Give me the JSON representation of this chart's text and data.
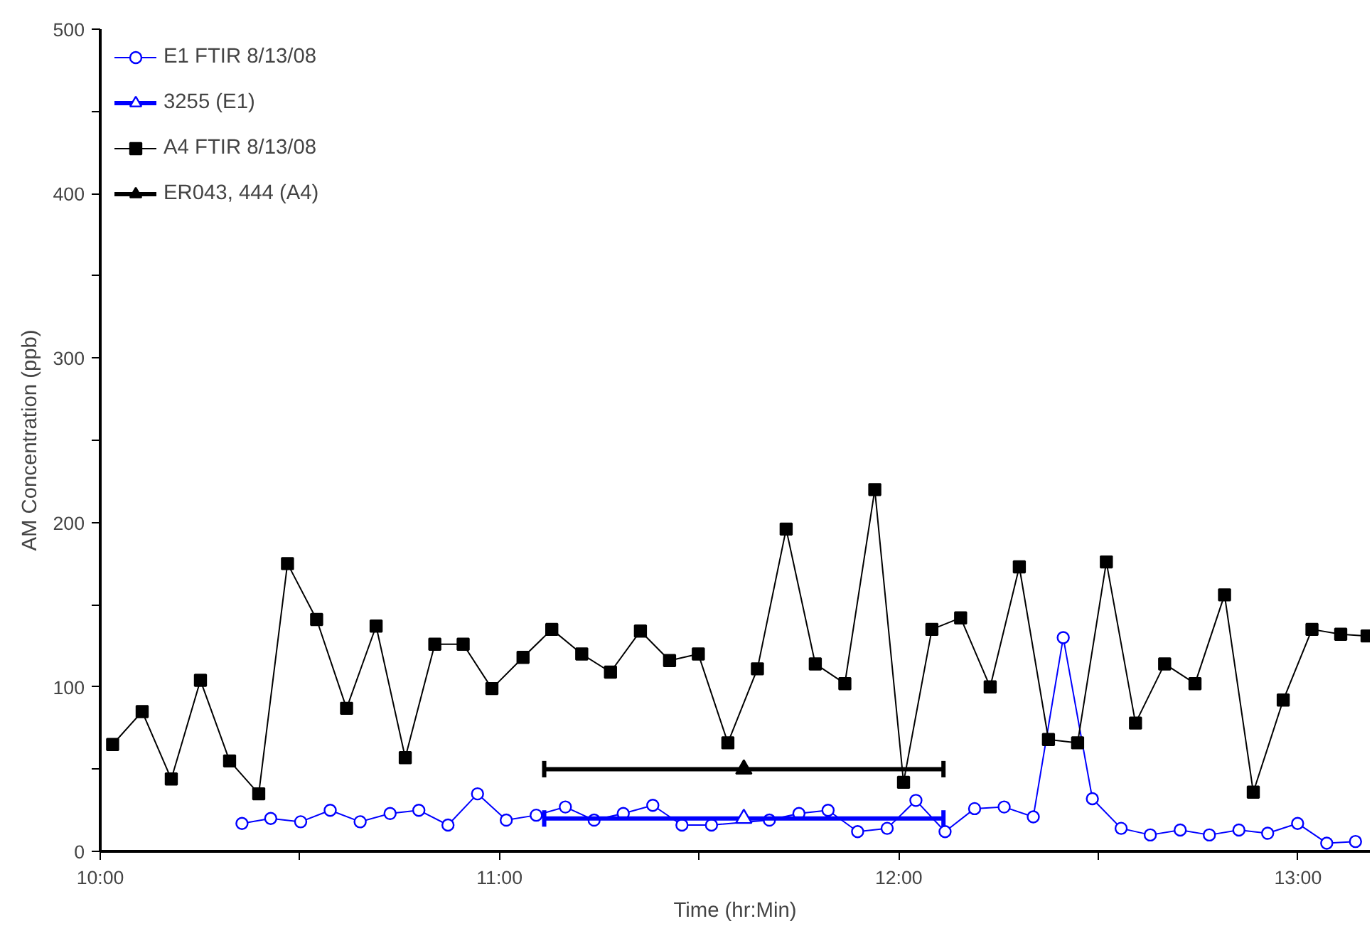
{
  "chart_data": {
    "type": "line",
    "xlabel": "Time (hr:Min)",
    "ylabel": "AM Concentration (ppb)",
    "xlim": [
      10,
      13.18
    ],
    "ylim": [
      0,
      500
    ],
    "xticks": [
      {
        "value": 10,
        "label": "10:00"
      },
      {
        "value": 10.5,
        "label": null
      },
      {
        "value": 11,
        "label": "11:00"
      },
      {
        "value": 11.5,
        "label": null
      },
      {
        "value": 12,
        "label": "12:00"
      },
      {
        "value": 12.5,
        "label": null
      },
      {
        "value": 13,
        "label": "13:00"
      }
    ],
    "yticks": [
      0,
      {
        "value": 50,
        "label": null
      },
      100,
      {
        "value": 150,
        "label": null
      },
      200,
      {
        "value": 250,
        "label": null
      },
      300,
      {
        "value": 350,
        "label": null
      },
      400,
      {
        "value": 450,
        "label": null
      },
      500
    ],
    "grid": false,
    "legend": "top left",
    "series": [
      {
        "name": "E1 FTIR 8/13/08",
        "color": "#0000ff",
        "marker": "circle",
        "x": [
          10.355,
          10.427,
          10.502,
          10.576,
          10.651,
          10.726,
          10.798,
          10.871,
          10.945,
          11.017,
          11.092,
          11.165,
          11.237,
          11.31,
          11.384,
          11.457,
          11.531,
          11.676,
          11.75,
          11.823,
          11.897,
          11.971,
          12.043,
          12.116,
          12.19,
          12.264,
          12.337,
          12.412,
          12.485,
          12.557,
          12.63,
          12.705,
          12.778,
          12.852,
          12.924,
          12.999,
          13.072,
          13.144
        ],
        "values": [
          17,
          20,
          18,
          25,
          18,
          23,
          25,
          16,
          35,
          19,
          22,
          27,
          19,
          23,
          28,
          16,
          16,
          19,
          23,
          25,
          12,
          14,
          31,
          12,
          26,
          27,
          21,
          130,
          32,
          14,
          10,
          13,
          10,
          13,
          11,
          17,
          5,
          6
        ]
      },
      {
        "name": "3255 (E1)",
        "type": "scatter",
        "color": "#0000ff",
        "marker": "triangle",
        "x": [
          11.612
        ],
        "values": [
          20
        ],
        "xerrors": [
          0.5
        ]
      },
      {
        "name": "A4 FTIR 8/13/08",
        "color": "#000000",
        "marker": "square",
        "x": [
          10.031,
          10.105,
          10.178,
          10.251,
          10.324,
          10.397,
          10.469,
          10.542,
          10.617,
          10.691,
          10.764,
          10.838,
          10.909,
          10.981,
          11.059,
          11.131,
          11.206,
          11.278,
          11.353,
          11.426,
          11.498,
          11.572,
          11.646,
          11.718,
          11.791,
          11.865,
          11.94,
          12.012,
          12.083,
          12.155,
          12.229,
          12.302,
          12.375,
          12.448,
          12.52,
          12.593,
          12.666,
          12.742,
          12.816,
          12.888,
          12.963,
          13.035,
          13.107,
          13.173
        ],
        "values": [
          65,
          85,
          44,
          104,
          55,
          35,
          175,
          141,
          87,
          137,
          57,
          126,
          126,
          99,
          118,
          135,
          120,
          109,
          134,
          116,
          120,
          66,
          111,
          196,
          114,
          102,
          220,
          42,
          135,
          142,
          100,
          173,
          68,
          66,
          176,
          78,
          114,
          102,
          156,
          36,
          92,
          135,
          132,
          131
        ]
      },
      {
        "name": "ER043, 444 (A4)",
        "type": "scatter",
        "color": "#000000",
        "marker": "triangle",
        "x": [
          11.612
        ],
        "values": [
          50
        ],
        "xerrors": [
          0.5
        ]
      }
    ]
  }
}
